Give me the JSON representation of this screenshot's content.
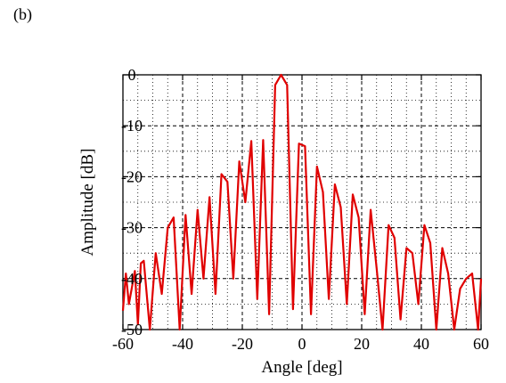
{
  "panel_label": "(b)",
  "chart_data": {
    "type": "line",
    "xlabel": "Angle [deg]",
    "ylabel": "Amplitude [dB]",
    "xlim": [
      -60,
      60
    ],
    "ylim": [
      -50,
      0
    ],
    "xticks": [
      -60,
      -40,
      -20,
      0,
      20,
      40,
      60
    ],
    "yticks": [
      0,
      -10,
      -20,
      -30,
      -40,
      -50
    ],
    "xtick_labels": [
      "-60",
      "-40",
      "-20",
      "0",
      "20",
      "40",
      "60"
    ],
    "ytick_labels": [
      "0",
      "-10",
      "-20",
      "-30",
      "-40",
      "-50"
    ],
    "grid": "dotted-minor-dashed-major",
    "line_color": "#e00000",
    "series": [
      {
        "x": [
          -60,
          -59,
          -58,
          -56,
          -55,
          -54,
          -53,
          -51,
          -49,
          -47,
          -45,
          -43,
          -41,
          -39,
          -37,
          -35,
          -33,
          -31,
          -29,
          -27,
          -25,
          -23,
          -21,
          -19,
          -17,
          -15,
          -13,
          -11,
          -9,
          -7,
          -5,
          -3,
          -1,
          1,
          3,
          5,
          7,
          9,
          11,
          13,
          15,
          17,
          19,
          21,
          23,
          25,
          27,
          29,
          31,
          33,
          35,
          37,
          39,
          41,
          43,
          45,
          47,
          49,
          51,
          53,
          55,
          57,
          59,
          60
        ],
        "y": [
          -46.3,
          -39,
          -45,
          -38.5,
          -49,
          -37,
          -36.5,
          -50,
          -35,
          -43,
          -30,
          -28,
          -50,
          -27.5,
          -43,
          -26.5,
          -40,
          -24,
          -43,
          -19.5,
          -21,
          -40,
          -17,
          -25,
          -13,
          -44,
          -12.8,
          -47,
          -2,
          0,
          -2,
          -46,
          -13.5,
          -14,
          -47,
          -18,
          -23,
          -44,
          -21.5,
          -26,
          -45,
          -23.5,
          -28,
          -47,
          -26.5,
          -38,
          -50,
          -29.5,
          -32,
          -48,
          -34,
          -35,
          -45,
          -29.5,
          -33,
          -50,
          -34,
          -39,
          -50,
          -42,
          -40,
          -39,
          -50,
          -40
        ]
      }
    ]
  }
}
